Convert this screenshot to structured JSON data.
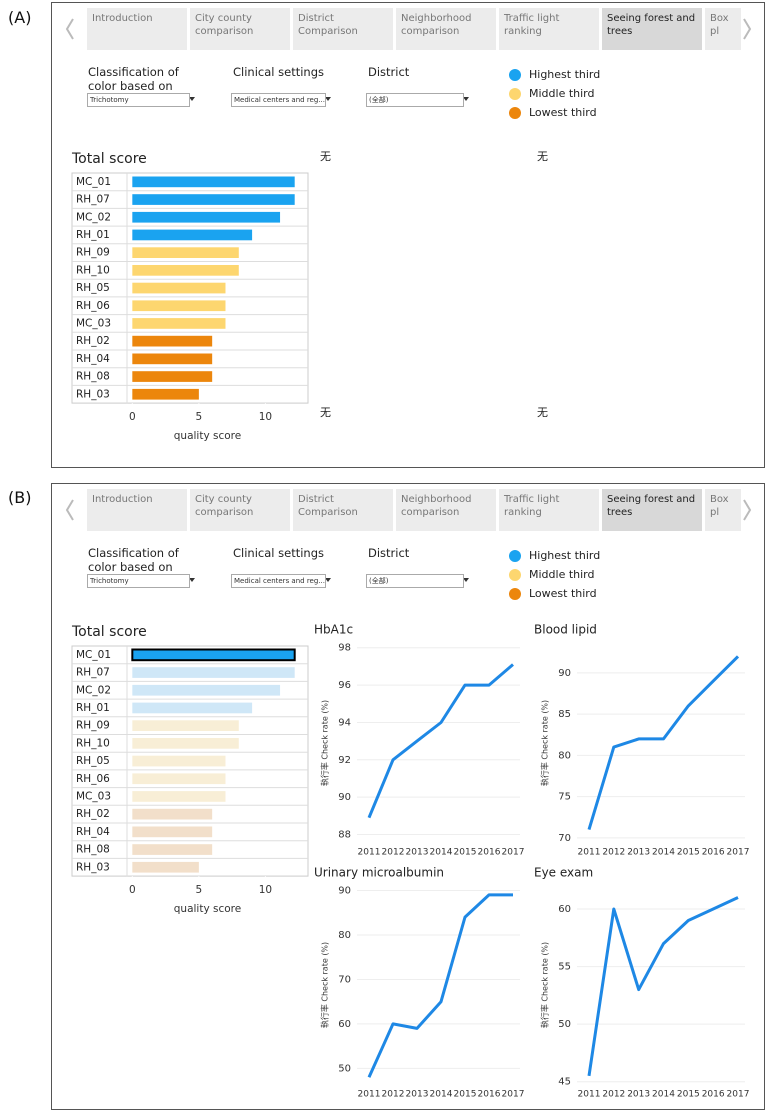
{
  "panels": [
    {
      "label": "(A)",
      "tabs": [
        "Introduction",
        "City county comparison",
        "District Comparison",
        "Neighborhood comparison",
        "Traffic light ranking",
        "Seeing forest and trees",
        "Box pl"
      ],
      "selected_tab": 5,
      "filters": [
        {
          "label": "Classification of color based on",
          "value": "Trichotomy"
        },
        {
          "label": "Clinical settings",
          "value": "Medical centers and reg..."
        },
        {
          "label": "District",
          "value": "(全部)"
        }
      ],
      "legend": [
        {
          "name": "Highest third",
          "color": "#1aa3f0"
        },
        {
          "name": "Middle third",
          "color": "#fdd66f"
        },
        {
          "name": "Lowest third",
          "color": "#ec860c"
        }
      ],
      "charts": [
        {
          "type": "bar",
          "title": "Total score",
          "xlabel": "quality score",
          "categories": [
            "MC_01",
            "RH_07",
            "MC_02",
            "RH_01",
            "RH_09",
            "RH_10",
            "RH_05",
            "RH_06",
            "MC_03",
            "RH_02",
            "RH_04",
            "RH_08",
            "RH_03"
          ],
          "values": [
            12.2,
            12.2,
            11.1,
            9,
            8,
            8,
            7,
            7,
            7,
            6,
            6,
            6,
            5
          ],
          "colors": [
            "#1aa3f0",
            "#1aa3f0",
            "#1aa3f0",
            "#1aa3f0",
            "#fdd66f",
            "#fdd66f",
            "#fdd66f",
            "#fdd66f",
            "#fdd66f",
            "#ec860c",
            "#ec860c",
            "#ec860c",
            "#ec860c"
          ],
          "xlim": [
            -0.4,
            13.2
          ],
          "xticks": [
            0,
            5,
            10
          ]
        }
      ],
      "placeholders": [
        "无",
        "无",
        "无",
        "无"
      ]
    },
    {
      "label": "(B)",
      "tabs": [
        "Introduction",
        "City county comparison",
        "District Comparison",
        "Neighborhood comparison",
        "Traffic light ranking",
        "Seeing forest and trees",
        "Box pl"
      ],
      "selected_tab": 5,
      "filters": [
        {
          "label": "Classification of color based on",
          "value": "Trichotomy"
        },
        {
          "label": "Clinical settings",
          "value": "Medical centers and reg..."
        },
        {
          "label": "District",
          "value": "(全部)"
        }
      ],
      "legend": [
        {
          "name": "Highest third",
          "color": "#1aa3f0"
        },
        {
          "name": "Middle third",
          "color": "#fdd66f"
        },
        {
          "name": "Lowest third",
          "color": "#ec860c"
        }
      ],
      "charts": [
        {
          "type": "bar",
          "title": "Total score",
          "xlabel": "quality score",
          "categories": [
            "MC_01",
            "RH_07",
            "MC_02",
            "RH_01",
            "RH_09",
            "RH_10",
            "RH_05",
            "RH_06",
            "MC_03",
            "RH_02",
            "RH_04",
            "RH_08",
            "RH_03"
          ],
          "values": [
            12.2,
            12.2,
            11.1,
            9,
            8,
            8,
            7,
            7,
            7,
            6,
            6,
            6,
            5
          ],
          "colors": [
            "#1aa3f0",
            "#cfe7f7",
            "#cfe7f7",
            "#cfe7f7",
            "#f8eed6",
            "#f8eed6",
            "#f8eed6",
            "#f8eed6",
            "#f8eed6",
            "#f2dfca",
            "#f2dfca",
            "#f2dfca",
            "#f2dfca"
          ],
          "selected_index": 0,
          "xlim": [
            -0.4,
            13.2
          ],
          "xticks": [
            0,
            5,
            10
          ]
        },
        {
          "type": "line",
          "title": "HbA1c",
          "ylabel": "執行率 Check rate (%)",
          "color": "#1e88e5",
          "grid": true,
          "categories": [
            "2011",
            "2012",
            "2013",
            "2014",
            "2015",
            "2016",
            "2017"
          ],
          "values": [
            88.9,
            92,
            93,
            94,
            96,
            96,
            97.1
          ],
          "ylim": [
            87.6,
            98.2
          ],
          "yticks": [
            88,
            90,
            92,
            94,
            96,
            98
          ]
        },
        {
          "type": "line",
          "title": "Blood lipid",
          "ylabel": "執行率 Check rate (%)",
          "color": "#1e88e5",
          "grid": true,
          "categories": [
            "2011",
            "2012",
            "2013",
            "2014",
            "2015",
            "2016",
            "2017"
          ],
          "values": [
            71,
            81,
            82,
            82,
            86,
            89,
            92
          ],
          "ylim": [
            69.5,
            93.5
          ],
          "yticks": [
            70,
            75,
            80,
            85,
            90
          ]
        },
        {
          "type": "line",
          "title": "Urinary microalbumin",
          "ylabel": "執行率 Check rate (%)",
          "color": "#1e88e5",
          "grid": true,
          "categories": [
            "2011",
            "2012",
            "2013",
            "2014",
            "2015",
            "2016",
            "2017"
          ],
          "values": [
            48,
            60,
            59,
            65,
            84,
            89,
            89
          ],
          "ylim": [
            46.5,
            91
          ],
          "yticks": [
            50,
            60,
            70,
            80,
            90
          ]
        },
        {
          "type": "line",
          "title": "Eye exam",
          "ylabel": "執行率 Check rate (%)",
          "color": "#1e88e5",
          "grid": true,
          "categories": [
            "2011",
            "2012",
            "2013",
            "2014",
            "2015",
            "2016",
            "2017"
          ],
          "values": [
            45.5,
            60,
            53,
            57,
            59,
            60,
            61
          ],
          "ylim": [
            44.8,
            62
          ],
          "yticks": [
            45,
            50,
            55,
            60
          ]
        }
      ]
    }
  ]
}
